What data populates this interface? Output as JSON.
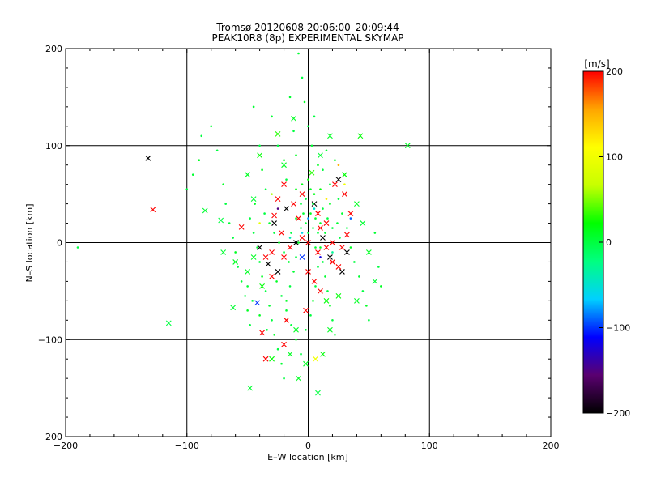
{
  "chart_data": {
    "type": "scatter",
    "title": "Tromsø 20120608 20:06:00–20:09:44",
    "subtitle": "PEAK10R8 (8p) EXPERIMENTAL SKYMAP",
    "xlabel": "E–W location [km]",
    "ylabel": "N–S location [km]",
    "xlim": [
      -200,
      200
    ],
    "ylim": [
      -200,
      200
    ],
    "xticks": [
      -200,
      -100,
      0,
      100,
      200
    ],
    "yticks": [
      -200,
      -100,
      0,
      100,
      200
    ],
    "xtick_labels": [
      "−200",
      "−100",
      "0",
      "100",
      "200"
    ],
    "ytick_labels": [
      "−200",
      "−100",
      "0",
      "100",
      "200"
    ],
    "grid": true,
    "colorbar": {
      "label": "[m/s]",
      "range": [
        -200,
        200
      ],
      "ticks": [
        -200,
        -100,
        0,
        100,
        200
      ],
      "tick_labels": [
        "−200",
        "−100",
        "0",
        "100",
        "200"
      ],
      "colors": [
        "#000000",
        "#5a0070",
        "#0000ff",
        "#00d0ff",
        "#00ff80",
        "#00ff00",
        "#c8ff00",
        "#ffff00",
        "#ffa500",
        "#ff0000"
      ]
    },
    "series": [
      {
        "marker": "cross",
        "points": [
          [
            -132,
            87,
            -200
          ],
          [
            -128,
            34,
            200
          ],
          [
            -115,
            -83,
            0
          ],
          [
            -85,
            33,
            5
          ],
          [
            -72,
            23,
            0
          ],
          [
            -55,
            16,
            200
          ],
          [
            -62,
            -67,
            5
          ],
          [
            -42,
            -62,
            -100
          ],
          [
            -38,
            -93,
            200
          ],
          [
            -35,
            -120,
            200
          ],
          [
            -48,
            -150,
            5
          ],
          [
            -30,
            -120,
            20
          ],
          [
            -20,
            -105,
            200
          ],
          [
            -15,
            -115,
            10
          ],
          [
            -25,
            112,
            30
          ],
          [
            -12,
            128,
            10
          ],
          [
            3,
            72,
            30
          ],
          [
            18,
            110,
            10
          ],
          [
            43,
            110,
            20
          ],
          [
            82,
            100,
            10
          ],
          [
            -25,
            45,
            200
          ],
          [
            -20,
            60,
            200
          ],
          [
            -28,
            20,
            -200
          ],
          [
            -22,
            10,
            200
          ],
          [
            -30,
            -10,
            200
          ],
          [
            -35,
            -15,
            200
          ],
          [
            -40,
            -5,
            -200
          ],
          [
            -18,
            35,
            -200
          ],
          [
            -12,
            40,
            200
          ],
          [
            -8,
            25,
            200
          ],
          [
            -5,
            50,
            200
          ],
          [
            5,
            40,
            -200
          ],
          [
            8,
            30,
            200
          ],
          [
            10,
            15,
            200
          ],
          [
            12,
            5,
            -200
          ],
          [
            15,
            -5,
            200
          ],
          [
            18,
            -15,
            -200
          ],
          [
            20,
            -20,
            200
          ],
          [
            25,
            -25,
            200
          ],
          [
            22,
            60,
            200
          ],
          [
            25,
            65,
            -200
          ],
          [
            30,
            50,
            200
          ],
          [
            35,
            30,
            200
          ],
          [
            32,
            -10,
            -200
          ],
          [
            28,
            -30,
            -200
          ],
          [
            20,
            0,
            200
          ],
          [
            15,
            20,
            200
          ],
          [
            8,
            -10,
            200
          ],
          [
            0,
            0,
            200
          ],
          [
            -5,
            5,
            200
          ],
          [
            -10,
            0,
            -200
          ],
          [
            -15,
            -5,
            200
          ],
          [
            -20,
            -15,
            200
          ],
          [
            -25,
            -30,
            -200
          ],
          [
            -30,
            -35,
            200
          ],
          [
            -5,
            -15,
            -100
          ],
          [
            0,
            -30,
            200
          ],
          [
            5,
            -40,
            200
          ],
          [
            10,
            -50,
            200
          ],
          [
            15,
            -60,
            20
          ],
          [
            -45,
            -15,
            10
          ],
          [
            -50,
            -30,
            10
          ],
          [
            -38,
            -45,
            20
          ],
          [
            -18,
            -80,
            200
          ],
          [
            -10,
            -90,
            10
          ],
          [
            6,
            -120,
            100
          ],
          [
            12,
            -115,
            20
          ],
          [
            8,
            -155,
            0
          ],
          [
            -2,
            -125,
            10
          ],
          [
            -8,
            -140,
            10
          ],
          [
            -45,
            45,
            5
          ],
          [
            -50,
            70,
            10
          ],
          [
            -40,
            90,
            20
          ],
          [
            -20,
            80,
            10
          ],
          [
            10,
            90,
            5
          ],
          [
            30,
            70,
            20
          ],
          [
            40,
            40,
            10
          ],
          [
            45,
            20,
            5
          ],
          [
            50,
            -10,
            10
          ],
          [
            55,
            -40,
            5
          ],
          [
            40,
            -60,
            10
          ],
          [
            25,
            -55,
            20
          ],
          [
            18,
            -90,
            10
          ],
          [
            -2,
            -70,
            200
          ],
          [
            28,
            -5,
            200
          ],
          [
            32,
            8,
            200
          ],
          [
            -28,
            28,
            200
          ],
          [
            -33,
            -22,
            -200
          ],
          [
            -60,
            -20,
            10
          ],
          [
            -70,
            -10,
            5
          ]
        ]
      },
      {
        "marker": "dot",
        "points": [
          [
            -190,
            -5,
            0
          ],
          [
            -100,
            55,
            0
          ],
          [
            -95,
            70,
            5
          ],
          [
            -90,
            85,
            10
          ],
          [
            -88,
            110,
            0
          ],
          [
            -80,
            120,
            5
          ],
          [
            -75,
            95,
            0
          ],
          [
            -70,
            60,
            10
          ],
          [
            -68,
            40,
            0
          ],
          [
            -65,
            20,
            5
          ],
          [
            -62,
            5,
            0
          ],
          [
            -60,
            -10,
            10
          ],
          [
            -58,
            -25,
            0
          ],
          [
            -55,
            -40,
            5
          ],
          [
            -52,
            -55,
            0
          ],
          [
            -50,
            -70,
            10
          ],
          [
            -48,
            -85,
            0
          ],
          [
            -45,
            140,
            5
          ],
          [
            -40,
            100,
            0
          ],
          [
            -38,
            75,
            10
          ],
          [
            -35,
            55,
            0
          ],
          [
            -30,
            130,
            5
          ],
          [
            -25,
            100,
            0
          ],
          [
            -20,
            85,
            10
          ],
          [
            -18,
            65,
            0
          ],
          [
            -15,
            150,
            5
          ],
          [
            -12,
            115,
            0
          ],
          [
            -10,
            90,
            10
          ],
          [
            -8,
            195,
            5
          ],
          [
            -5,
            170,
            0
          ],
          [
            -3,
            145,
            10
          ],
          [
            0,
            120,
            0
          ],
          [
            3,
            100,
            5
          ],
          [
            5,
            130,
            0
          ],
          [
            8,
            80,
            10
          ],
          [
            12,
            75,
            0
          ],
          [
            15,
            95,
            5
          ],
          [
            18,
            60,
            0
          ],
          [
            22,
            85,
            10
          ],
          [
            25,
            45,
            0
          ],
          [
            28,
            30,
            5
          ],
          [
            32,
            15,
            0
          ],
          [
            35,
            -5,
            10
          ],
          [
            38,
            -20,
            0
          ],
          [
            42,
            -35,
            5
          ],
          [
            45,
            -50,
            0
          ],
          [
            48,
            -65,
            10
          ],
          [
            50,
            -80,
            0
          ],
          [
            55,
            10,
            5
          ],
          [
            58,
            -25,
            0
          ],
          [
            60,
            -45,
            10
          ],
          [
            -45,
            10,
            0
          ],
          [
            -42,
            -5,
            5
          ],
          [
            -40,
            -20,
            0
          ],
          [
            -38,
            -35,
            10
          ],
          [
            -35,
            -50,
            0
          ],
          [
            -32,
            -65,
            5
          ],
          [
            -30,
            -80,
            0
          ],
          [
            -28,
            -95,
            10
          ],
          [
            -25,
            -110,
            0
          ],
          [
            -22,
            -125,
            5
          ],
          [
            -20,
            -140,
            0
          ],
          [
            -18,
            -60,
            10
          ],
          [
            -15,
            -45,
            0
          ],
          [
            -12,
            -30,
            5
          ],
          [
            -10,
            -15,
            0
          ],
          [
            -8,
            0,
            10
          ],
          [
            -6,
            15,
            0
          ],
          [
            -4,
            30,
            5
          ],
          [
            -2,
            45,
            0
          ],
          [
            2,
            55,
            10
          ],
          [
            4,
            40,
            0
          ],
          [
            6,
            25,
            5
          ],
          [
            8,
            10,
            0
          ],
          [
            10,
            -5,
            10
          ],
          [
            12,
            -20,
            0
          ],
          [
            14,
            -35,
            5
          ],
          [
            16,
            -50,
            0
          ],
          [
            18,
            -65,
            10
          ],
          [
            20,
            -80,
            0
          ],
          [
            22,
            -95,
            5
          ],
          [
            -48,
            25,
            0
          ],
          [
            -44,
            40,
            10
          ],
          [
            -36,
            30,
            0
          ],
          [
            -32,
            20,
            5
          ],
          [
            -28,
            10,
            0
          ],
          [
            -24,
            0,
            10
          ],
          [
            -20,
            -10,
            0
          ],
          [
            -16,
            -20,
            5
          ],
          [
            -14,
            10,
            0
          ],
          [
            -10,
            25,
            10
          ],
          [
            -6,
            40,
            0
          ],
          [
            -2,
            20,
            5
          ],
          [
            0,
            10,
            0
          ],
          [
            2,
            30,
            10
          ],
          [
            4,
            15,
            0
          ],
          [
            6,
            -5,
            5
          ],
          [
            8,
            -25,
            0
          ],
          [
            10,
            20,
            10
          ],
          [
            12,
            35,
            0
          ],
          [
            14,
            10,
            5
          ],
          [
            16,
            25,
            0
          ],
          [
            18,
            40,
            10
          ],
          [
            20,
            15,
            0
          ],
          [
            24,
            20,
            5
          ],
          [
            26,
            5,
            0
          ],
          [
            -26,
            -40,
            10
          ],
          [
            -22,
            -55,
            0
          ],
          [
            -18,
            -70,
            5
          ],
          [
            -14,
            -85,
            0
          ],
          [
            -10,
            -100,
            10
          ],
          [
            -6,
            -115,
            0
          ],
          [
            -2,
            -90,
            5
          ],
          [
            2,
            -75,
            0
          ],
          [
            4,
            -60,
            10
          ],
          [
            6,
            -45,
            0
          ],
          [
            -50,
            -45,
            5
          ],
          [
            -46,
            -60,
            0
          ],
          [
            -40,
            -75,
            10
          ],
          [
            -34,
            -90,
            0
          ],
          [
            -5,
            60,
            15
          ],
          [
            0,
            65,
            20
          ],
          [
            5,
            50,
            15
          ],
          [
            10,
            55,
            20
          ],
          [
            -10,
            55,
            15
          ],
          [
            30,
            60,
            100
          ],
          [
            15,
            45,
            120
          ],
          [
            -30,
            50,
            60
          ],
          [
            25,
            80,
            150
          ],
          [
            -40,
            20,
            90
          ],
          [
            5,
            35,
            -50
          ],
          [
            0,
            25,
            -80
          ],
          [
            -5,
            10,
            -60
          ],
          [
            10,
            -15,
            -120
          ],
          [
            -15,
            5,
            -40
          ],
          [
            20,
            -10,
            -30
          ],
          [
            35,
            25,
            -90
          ],
          [
            -25,
            35,
            -150
          ]
        ]
      }
    ]
  }
}
